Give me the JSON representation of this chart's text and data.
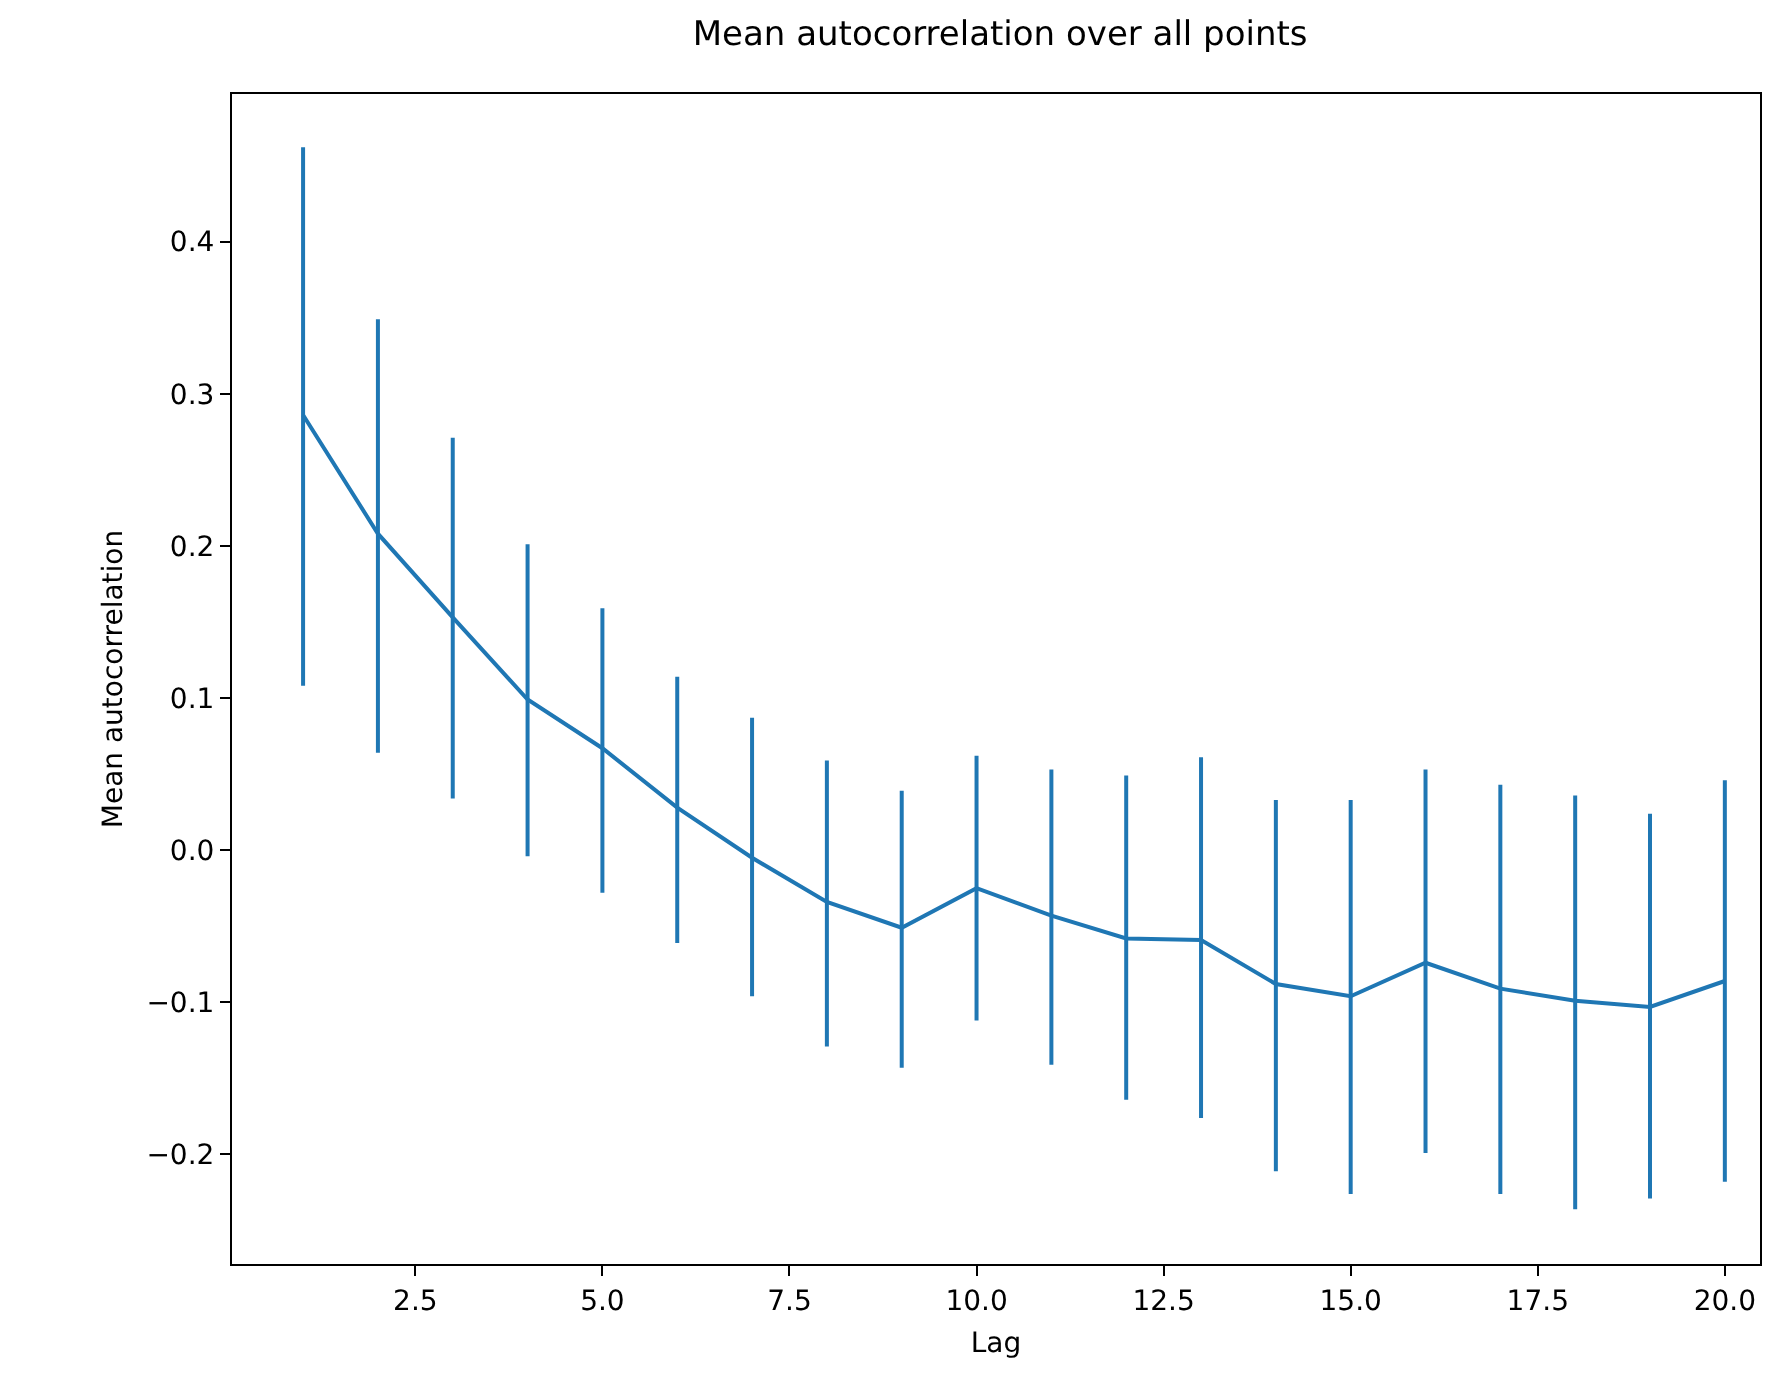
{
  "chart_data": {
    "type": "line",
    "title": "Mean autocorrelation over all points",
    "xlabel": "Lag",
    "ylabel": "Mean autocorrelation",
    "x": [
      1,
      2,
      3,
      4,
      5,
      6,
      7,
      8,
      9,
      10,
      11,
      12,
      13,
      14,
      15,
      16,
      17,
      18,
      19,
      20
    ],
    "series": [
      {
        "color": "#1f77b4",
        "values": [
          0.286,
          0.208,
          0.153,
          0.099,
          0.067,
          0.028,
          -0.005,
          -0.034,
          -0.051,
          -0.025,
          -0.043,
          -0.058,
          -0.059,
          -0.088,
          -0.096,
          -0.074,
          -0.091,
          -0.099,
          -0.103,
          -0.086
        ],
        "errors": [
          [
            0.108,
            0.462
          ],
          [
            0.064,
            0.349
          ],
          [
            0.034,
            0.271
          ],
          [
            -0.004,
            0.201
          ],
          [
            -0.028,
            0.159
          ],
          [
            -0.061,
            0.114
          ],
          [
            -0.096,
            0.087
          ],
          [
            -0.129,
            0.059
          ],
          [
            -0.143,
            0.039
          ],
          [
            -0.112,
            0.062
          ],
          [
            -0.141,
            0.053
          ],
          [
            -0.164,
            0.049
          ],
          [
            -0.176,
            0.061
          ],
          [
            -0.211,
            0.033
          ],
          [
            -0.226,
            0.033
          ],
          [
            -0.199,
            0.053
          ],
          [
            -0.226,
            0.043
          ],
          [
            -0.236,
            0.036
          ],
          [
            -0.229,
            0.024
          ],
          [
            -0.218,
            0.046
          ]
        ]
      }
    ],
    "xlim": [
      0.05,
      20.47
    ],
    "ylim": [
      -0.272,
      0.497
    ],
    "xticks": [
      {
        "value": 2.5,
        "label": "2.5"
      },
      {
        "value": 5,
        "label": "5.0"
      },
      {
        "value": 7.5,
        "label": "7.5"
      },
      {
        "value": 10,
        "label": "10.0"
      },
      {
        "value": 12.5,
        "label": "12.5"
      },
      {
        "value": 15,
        "label": "15.0"
      },
      {
        "value": 17.5,
        "label": "17.5"
      },
      {
        "value": 20,
        "label": "20.0"
      }
    ],
    "yticks": [
      {
        "value": -0.2,
        "label": "−0.2"
      },
      {
        "value": -0.1,
        "label": "−0.1"
      },
      {
        "value": 0,
        "label": "0.0"
      },
      {
        "value": 0.1,
        "label": "0.1"
      },
      {
        "value": 0.2,
        "label": "0.2"
      },
      {
        "value": 0.3,
        "label": "0.3"
      },
      {
        "value": 0.4,
        "label": "0.4"
      }
    ],
    "grid": false,
    "marker": "none",
    "line_style": "solid"
  }
}
